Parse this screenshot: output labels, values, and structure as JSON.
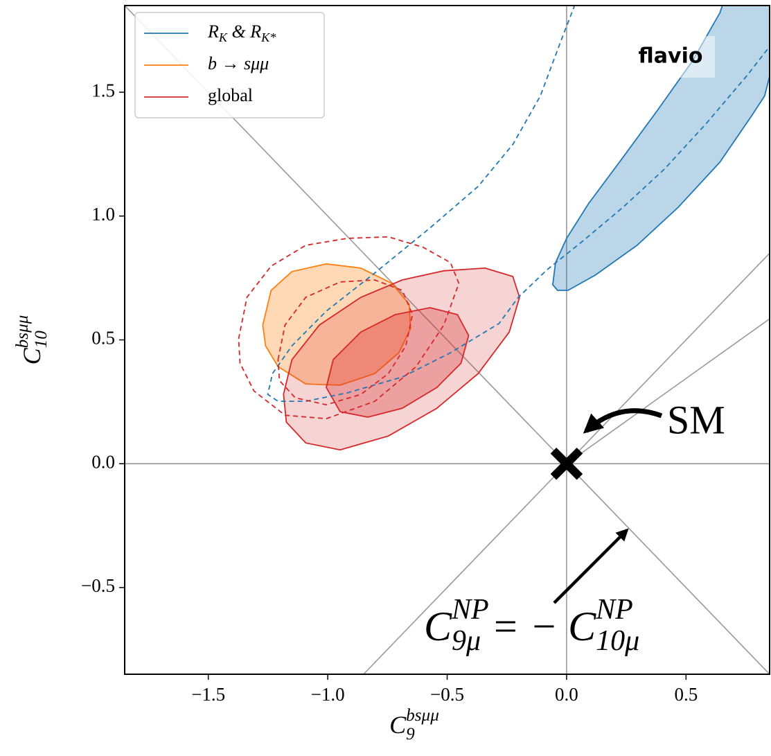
{
  "chart_data": {
    "type": "contour",
    "xlabel": "C^{bsμμ}_{9}",
    "ylabel": "C^{bsμμ}_{10}",
    "xlim": [
      -1.85,
      0.85
    ],
    "ylim": [
      -0.85,
      1.85
    ],
    "xticks": [
      {
        "value": -1.5,
        "label": "−1.5"
      },
      {
        "value": -1.0,
        "label": "−1.0"
      },
      {
        "value": -0.5,
        "label": "−0.5"
      },
      {
        "value": 0.0,
        "label": "0.0"
      },
      0.5
    ],
    "yticks": [
      {
        "value": -0.5,
        "label": "−0.5"
      },
      {
        "value": 0.0,
        "label": "0.0"
      },
      0.5,
      {
        "value": 1.0,
        "label": "1.0"
      },
      1.5
    ],
    "legend": "upper left",
    "watermark": "flavio",
    "series": [
      {
        "name": "R_{K} & R_{K*}",
        "color": "#1f77b4",
        "contours": [
          {
            "level": 1,
            "style": "filled",
            "closed": true,
            "x": [
              -0.058,
              -0.046,
              0.0,
              0.092,
              0.237,
              0.382,
              0.526,
              0.642,
              0.671,
              0.873,
              0.873,
              0.829,
              0.772,
              0.642,
              0.468,
              0.295,
              0.121,
              0.006,
              -0.038
            ],
            "y": [
              0.723,
              0.812,
              0.91,
              1.05,
              1.238,
              1.429,
              1.625,
              1.821,
              1.905,
              1.905,
              1.653,
              1.485,
              1.401,
              1.218,
              1.036,
              0.882,
              0.762,
              0.7,
              0.7
            ]
          },
          {
            "level": 2,
            "style": "dashed",
            "closed": false,
            "x": [
              0.035,
              -0.023,
              -0.11,
              -0.225,
              -0.37,
              -0.572,
              -0.803,
              -1.006,
              -1.15,
              -1.231,
              -1.251,
              -1.208,
              -1.092,
              -0.919,
              -0.688,
              -0.486,
              -0.283,
              -0.202,
              -0.081,
              0.064,
              0.237,
              0.41,
              0.584,
              0.757,
              0.847
            ],
            "y": [
              1.854,
              1.709,
              1.485,
              1.289,
              1.12,
              0.952,
              0.77,
              0.616,
              0.476,
              0.364,
              0.28,
              0.252,
              0.252,
              0.286,
              0.35,
              0.448,
              0.566,
              0.672,
              0.784,
              0.896,
              1.036,
              1.19,
              1.373,
              1.569,
              1.681
            ]
          }
        ]
      },
      {
        "name": "b → sμμ",
        "color": "#ff7f0e",
        "contours": [
          {
            "level": 1,
            "style": "filled",
            "closed": true,
            "x": [
              -1.272,
              -1.237,
              -1.15,
              -1.006,
              -0.861,
              -0.731,
              -0.659,
              -0.653,
              -0.702,
              -0.803,
              -0.948,
              -1.092,
              -1.208,
              -1.26
            ],
            "y": [
              0.56,
              0.7,
              0.776,
              0.807,
              0.79,
              0.728,
              0.644,
              0.546,
              0.448,
              0.364,
              0.317,
              0.322,
              0.392,
              0.476
            ]
          }
        ]
      },
      {
        "name": "global",
        "color": "#d62728",
        "contours": [
          {
            "level": 2,
            "style": "filled",
            "closed": true,
            "x": [
              -1.185,
              -1.15,
              -1.035,
              -0.861,
              -0.688,
              -0.514,
              -0.341,
              -0.225,
              -0.197,
              -0.24,
              -0.37,
              -0.543,
              -0.746,
              -0.948,
              -1.092,
              -1.173
            ],
            "y": [
              0.28,
              0.42,
              0.56,
              0.672,
              0.742,
              0.779,
              0.79,
              0.756,
              0.672,
              0.532,
              0.364,
              0.224,
              0.112,
              0.056,
              0.084,
              0.168
            ]
          },
          {
            "level": 1,
            "style": "filled",
            "closed": true,
            "x": [
              -1.006,
              -0.977,
              -0.861,
              -0.717,
              -0.572,
              -0.457,
              -0.41,
              -0.442,
              -0.543,
              -0.688,
              -0.832,
              -0.948
            ],
            "y": [
              0.308,
              0.42,
              0.532,
              0.602,
              0.63,
              0.602,
              0.518,
              0.406,
              0.308,
              0.224,
              0.188,
              0.21
            ]
          },
          {
            "level": 2,
            "style": "dashed",
            "closed": true,
            "x": [
              -1.373,
              -1.338,
              -1.237,
              -1.092,
              -0.919,
              -0.746,
              -0.601,
              -0.486,
              -0.451,
              -0.514,
              -0.63,
              -0.803,
              -1.006,
              -1.179,
              -1.309,
              -1.367
            ],
            "y": [
              0.504,
              0.672,
              0.798,
              0.882,
              0.91,
              0.916,
              0.874,
              0.812,
              0.728,
              0.56,
              0.392,
              0.252,
              0.182,
              0.196,
              0.294,
              0.406
            ]
          },
          {
            "level": 1,
            "style": "dashed",
            "closed": true,
            "x": [
              -1.208,
              -1.179,
              -1.092,
              -0.948,
              -0.803,
              -0.688,
              -0.645,
              -0.673,
              -0.746,
              -0.861,
              -1.006,
              -1.136,
              -1.202
            ],
            "y": [
              0.42,
              0.56,
              0.672,
              0.734,
              0.742,
              0.7,
              0.602,
              0.476,
              0.364,
              0.28,
              0.238,
              0.266,
              0.336
            ]
          }
        ]
      }
    ],
    "reference_lines": [
      {
        "x": [
          -1.85,
          0.85
        ],
        "y": [
          1.85,
          -0.85
        ]
      },
      {
        "x": [
          -0.85,
          0.85
        ],
        "y": [
          -0.85,
          0.85
        ]
      },
      {
        "x": [
          0.0,
          0.85
        ],
        "y": [
          0.0,
          0.585
        ]
      },
      {
        "x": [
          0.0,
          0.0
        ],
        "y": [
          -0.85,
          1.85
        ]
      },
      {
        "x": [
          -1.85,
          0.85
        ],
        "y": [
          0.0,
          0.0
        ]
      }
    ],
    "marker": {
      "x": 0.0,
      "y": 0.0,
      "label": "SM"
    },
    "annotation": "C^{NP}_{9μ} = − C^{NP}_{10μ}"
  }
}
